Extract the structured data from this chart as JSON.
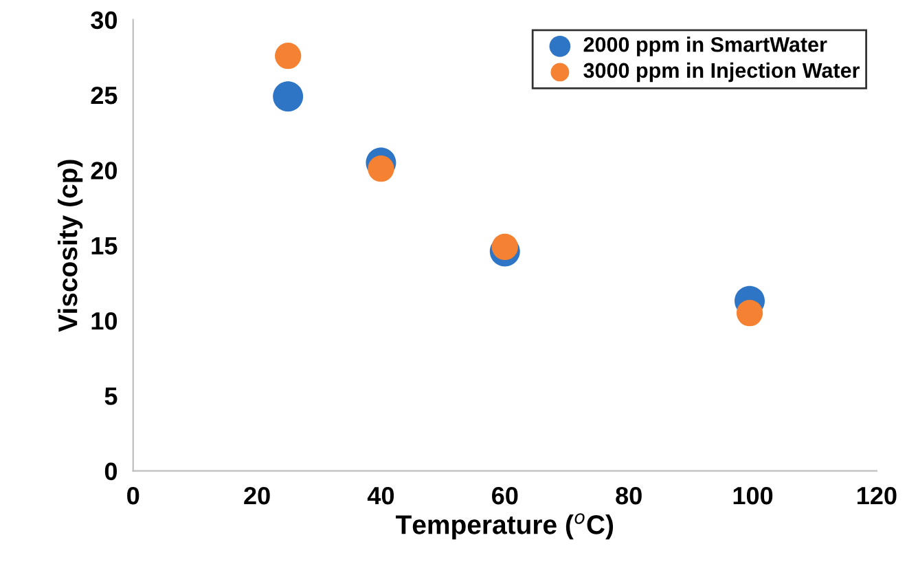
{
  "chart_data": {
    "type": "scatter",
    "xlabel": "Temperature ($^{o}$C)",
    "ylabel": "Viscosity (cp)",
    "xlim": [
      0,
      120
    ],
    "xticks": [
      0,
      20,
      40,
      60,
      80,
      100,
      120
    ],
    "ylim": [
      0,
      30
    ],
    "yticks": [
      0,
      5,
      10,
      15,
      20,
      25,
      30
    ],
    "grid": false,
    "legend": "top right",
    "marker": "circle",
    "series": [
      {
        "name": "2000 ppm in SmartWater",
        "color": "#2e75c5",
        "x": [
          25,
          40,
          60,
          99.5
        ],
        "values": [
          24.9,
          20.5,
          14.6,
          11.3
        ]
      },
      {
        "name": "3000 ppm in Injection Water",
        "color": "#f58232",
        "x": [
          25,
          40,
          60,
          99.5
        ],
        "values": [
          27.6,
          20.1,
          14.9,
          10.5
        ]
      }
    ]
  }
}
